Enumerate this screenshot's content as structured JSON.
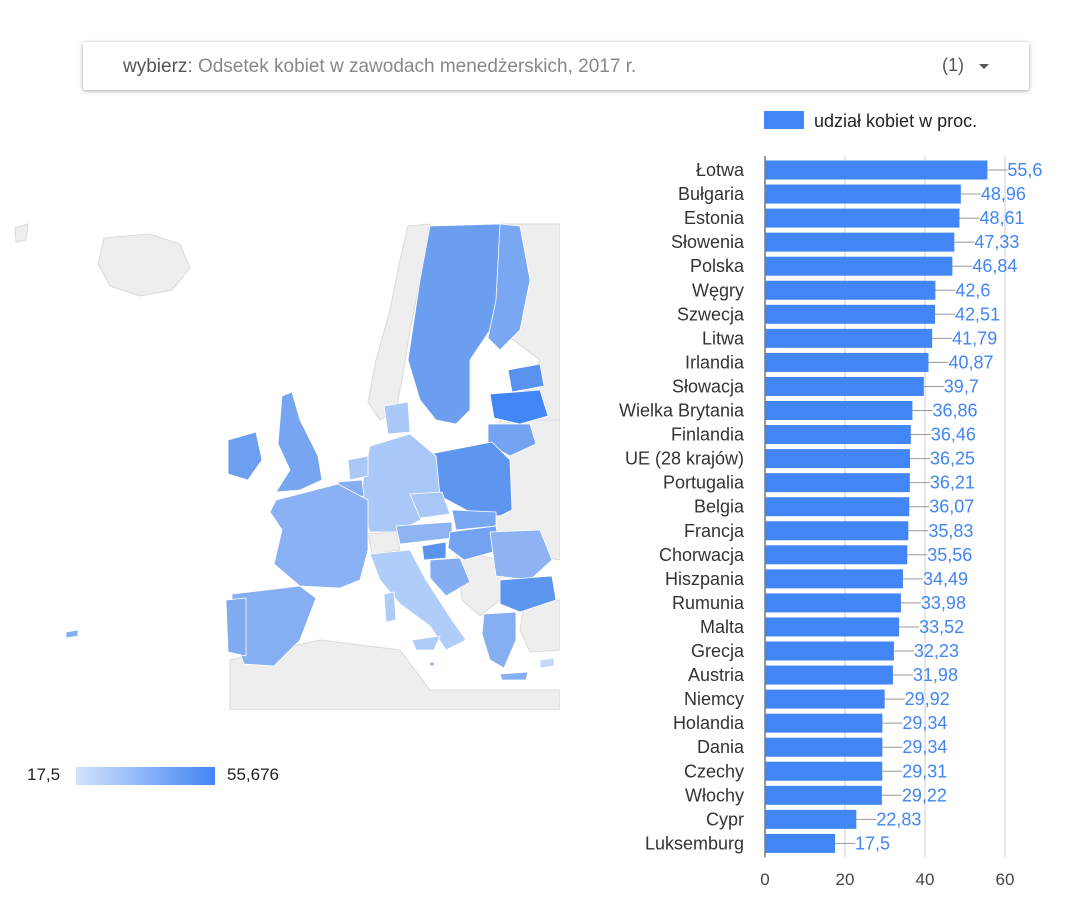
{
  "selector": {
    "prefix": "wybierz",
    "separator": ":",
    "value": " Odsetek kobiet w zawodach menedżerskich, 2017 r.",
    "count": "(1)"
  },
  "map": {
    "scale_min": "17,5",
    "scale_max": "55,676",
    "color_low": "#d2e3fc",
    "color_high": "#4285f4",
    "land_color": "#eeeeee"
  },
  "chart_data": {
    "type": "bar",
    "orientation": "horizontal",
    "categories": [
      "Łotwa",
      "Bułgaria",
      "Estonia",
      "Słowenia",
      "Polska",
      "Węgry",
      "Szwecja",
      "Litwa",
      "Irlandia",
      "Słowacja",
      "Wielka Brytania",
      "Finlandia",
      "UE (28 krajów)",
      "Portugalia",
      "Belgia",
      "Francja",
      "Chorwacja",
      "Hiszpania",
      "Rumunia",
      "Malta",
      "Grecja",
      "Austria",
      "Niemcy",
      "Holandia",
      "Dania",
      "Czechy",
      "Włochy",
      "Cypr",
      "Luksemburg"
    ],
    "series": [
      {
        "name": "udział kobiet w proc.",
        "color": "#4285f4",
        "values": [
          55.6,
          48.96,
          48.61,
          47.33,
          46.84,
          42.6,
          42.51,
          41.79,
          40.87,
          39.7,
          36.86,
          36.46,
          36.25,
          36.21,
          36.07,
          35.83,
          35.56,
          34.49,
          33.98,
          33.52,
          32.23,
          31.98,
          29.92,
          29.34,
          29.34,
          29.31,
          29.22,
          22.83,
          17.5
        ],
        "labels": [
          "55,6",
          "48,96",
          "48,61",
          "47,33",
          "46,84",
          "42,6",
          "42,51",
          "41,79",
          "40,87",
          "39,7",
          "36,86",
          "36,46",
          "36,25",
          "36,21",
          "36,07",
          "35,83",
          "35,56",
          "34,49",
          "33,98",
          "33,52",
          "32,23",
          "31,98",
          "29,92",
          "29,34",
          "29,34",
          "29,31",
          "29,22",
          "22,83",
          "17,5"
        ]
      }
    ],
    "xlim": [
      0,
      60
    ],
    "xticks": [
      "0",
      "20",
      "40",
      "60"
    ],
    "grid": true,
    "legend": "top"
  }
}
